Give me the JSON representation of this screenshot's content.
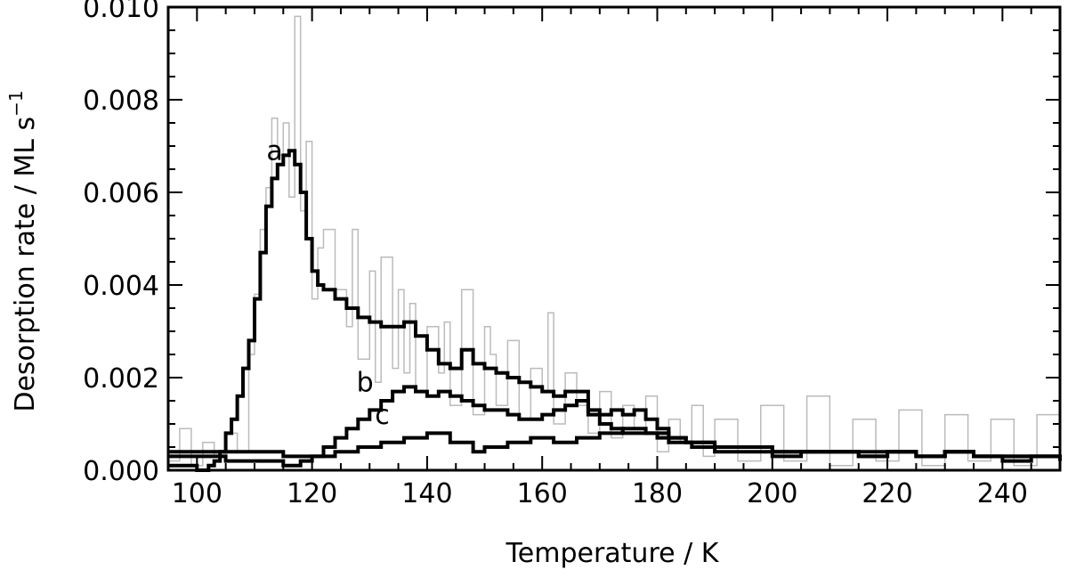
{
  "chart_data": {
    "type": "line",
    "title": "",
    "xlabel": "Temperature / K",
    "ylabel": "Desorption rate / ML s",
    "ylabel_superscript": "−1",
    "xlim": [
      95,
      250
    ],
    "ylim": [
      0,
      0.01
    ],
    "x_ticks": [
      100,
      120,
      140,
      160,
      180,
      200,
      220,
      240
    ],
    "x_tick_labels": [
      "100",
      "120",
      "140",
      "160",
      "180",
      "200",
      "220",
      "240"
    ],
    "y_ticks": [
      0,
      0.002,
      0.004,
      0.006,
      0.008,
      0.01
    ],
    "y_tick_labels": [
      "0.000",
      "0.002",
      "0.004",
      "0.006",
      "0.008",
      "0.010"
    ],
    "grid": false,
    "legend": "none",
    "colors": {
      "smoothed": "#000000",
      "raw": "#bbbbbb"
    },
    "series": [
      {
        "name": "a",
        "style": "thick-black",
        "x": [
          95,
          98,
          100,
          102,
          103,
          104,
          105,
          106,
          107,
          108,
          109,
          110,
          111,
          112,
          113,
          114,
          115,
          116,
          117,
          118,
          119,
          120,
          121,
          122,
          124,
          126,
          128,
          130,
          132,
          134,
          136,
          138,
          140,
          142,
          144,
          146,
          148,
          150,
          152,
          154,
          156,
          158,
          160,
          162,
          164,
          166,
          168,
          170,
          172,
          174,
          176,
          178,
          180,
          185,
          190,
          195,
          200,
          205,
          210,
          215,
          220,
          225,
          230,
          235,
          240,
          245,
          250
        ],
        "y": [
          0.0001,
          0.0001,
          0.0,
          0.0001,
          0.0002,
          0.0004,
          0.0008,
          0.0011,
          0.0016,
          0.0022,
          0.0028,
          0.0037,
          0.0047,
          0.0057,
          0.0063,
          0.0066,
          0.0068,
          0.0069,
          0.0066,
          0.006,
          0.005,
          0.0043,
          0.004,
          0.0039,
          0.0037,
          0.0035,
          0.0033,
          0.0032,
          0.0031,
          0.0031,
          0.0032,
          0.0029,
          0.0026,
          0.0023,
          0.0022,
          0.0026,
          0.0023,
          0.0022,
          0.0021,
          0.002,
          0.0019,
          0.0018,
          0.0017,
          0.0016,
          0.0017,
          0.0017,
          0.0012,
          0.001,
          0.0009,
          0.0008,
          0.0008,
          0.0008,
          0.0007,
          0.0006,
          0.0005,
          0.0005,
          0.0004,
          0.0004,
          0.0004,
          0.0004,
          0.0004,
          0.0003,
          0.0004,
          0.0003,
          0.0003,
          0.0003,
          0.0003
        ]
      },
      {
        "name": "b",
        "style": "thick-black",
        "x": [
          95,
          100,
          105,
          110,
          115,
          118,
          120,
          122,
          124,
          126,
          128,
          130,
          132,
          134,
          136,
          138,
          140,
          142,
          144,
          146,
          148,
          150,
          152,
          154,
          156,
          158,
          160,
          162,
          164,
          166,
          168,
          170,
          172,
          174,
          176,
          178,
          180,
          182,
          185,
          190,
          195,
          200,
          205,
          210,
          215,
          220,
          225,
          230,
          235,
          240,
          245,
          250
        ],
        "y": [
          0.0003,
          0.0003,
          0.0002,
          0.0002,
          0.0001,
          0.0002,
          0.0003,
          0.0005,
          0.0007,
          0.0009,
          0.0011,
          0.0013,
          0.0015,
          0.0017,
          0.0018,
          0.0017,
          0.0016,
          0.0017,
          0.0016,
          0.0015,
          0.0014,
          0.0013,
          0.0013,
          0.0012,
          0.0011,
          0.0011,
          0.0012,
          0.0013,
          0.0014,
          0.0015,
          0.0013,
          0.0012,
          0.0013,
          0.0012,
          0.0013,
          0.0011,
          0.0009,
          0.0007,
          0.0006,
          0.0005,
          0.0005,
          0.0004,
          0.0004,
          0.0004,
          0.0003,
          0.0004,
          0.0003,
          0.0004,
          0.0003,
          0.0003,
          0.0003,
          0.0003
        ]
      },
      {
        "name": "c",
        "style": "thick-black",
        "x": [
          95,
          100,
          105,
          110,
          115,
          120,
          124,
          128,
          132,
          136,
          140,
          144,
          148,
          150,
          154,
          158,
          162,
          166,
          170,
          174,
          178,
          182,
          186,
          190,
          195,
          200,
          205,
          210,
          215,
          220,
          225,
          230,
          235,
          240,
          245,
          250
        ],
        "y": [
          0.0004,
          0.0004,
          0.0004,
          0.0004,
          0.0003,
          0.0003,
          0.0004,
          0.0005,
          0.0006,
          0.0007,
          0.0008,
          0.0006,
          0.0004,
          0.0005,
          0.0006,
          0.0007,
          0.0006,
          0.0007,
          0.0008,
          0.0009,
          0.0008,
          0.0006,
          0.0005,
          0.0004,
          0.0004,
          0.0003,
          0.0004,
          0.0004,
          0.0003,
          0.0004,
          0.0003,
          0.0004,
          0.0003,
          0.0002,
          0.0003,
          0.0002
        ]
      },
      {
        "name": "",
        "style": "thin-grey-step",
        "x": [
          95,
          97,
          99,
          101,
          103,
          105,
          107,
          109,
          110,
          111,
          112,
          113,
          114,
          115,
          116,
          117,
          118,
          119,
          120,
          121,
          122,
          124,
          126,
          127,
          128,
          130,
          131,
          132,
          134,
          135,
          136,
          137,
          138,
          140,
          142,
          143,
          144,
          146,
          148,
          150,
          151,
          152,
          154,
          156,
          158,
          160,
          161,
          162,
          164,
          166,
          168,
          170,
          172,
          174,
          176,
          178,
          180,
          182,
          184,
          186,
          188,
          190,
          194,
          198,
          202,
          206,
          210,
          214,
          218,
          222,
          226,
          230,
          234,
          238,
          242,
          246,
          250
        ],
        "y": [
          0.0002,
          0.0009,
          0.0001,
          0.0006,
          0.0003,
          0.0008,
          0.0004,
          0.0025,
          0.0038,
          0.0052,
          0.0061,
          0.0076,
          0.0068,
          0.0075,
          0.0059,
          0.0098,
          0.0056,
          0.0071,
          0.0037,
          0.0048,
          0.0052,
          0.0039,
          0.0031,
          0.0052,
          0.0024,
          0.0043,
          0.0019,
          0.0046,
          0.0022,
          0.0039,
          0.0021,
          0.0036,
          0.0017,
          0.0031,
          0.0021,
          0.0032,
          0.0014,
          0.0039,
          0.0012,
          0.0031,
          0.0025,
          0.0014,
          0.0028,
          0.0011,
          0.0022,
          0.0017,
          0.0034,
          0.001,
          0.0021,
          0.0014,
          0.0008,
          0.0017,
          0.0007,
          0.0014,
          0.0009,
          0.0016,
          0.0004,
          0.0011,
          0.0006,
          0.0014,
          0.0003,
          0.0011,
          0.0002,
          0.0014,
          0.0002,
          0.0016,
          0.0001,
          0.0011,
          0.0002,
          0.0013,
          0.0001,
          0.0012,
          0.0002,
          0.0011,
          0.0001,
          0.0012,
          0.0002
        ]
      }
    ],
    "annotations": [
      {
        "text": "a",
        "x": 113.5,
        "y": 0.0067
      },
      {
        "text": "b",
        "x": 129.2,
        "y": 0.0017
      },
      {
        "text": "c",
        "x": 132.2,
        "y": 0.001
      }
    ]
  }
}
